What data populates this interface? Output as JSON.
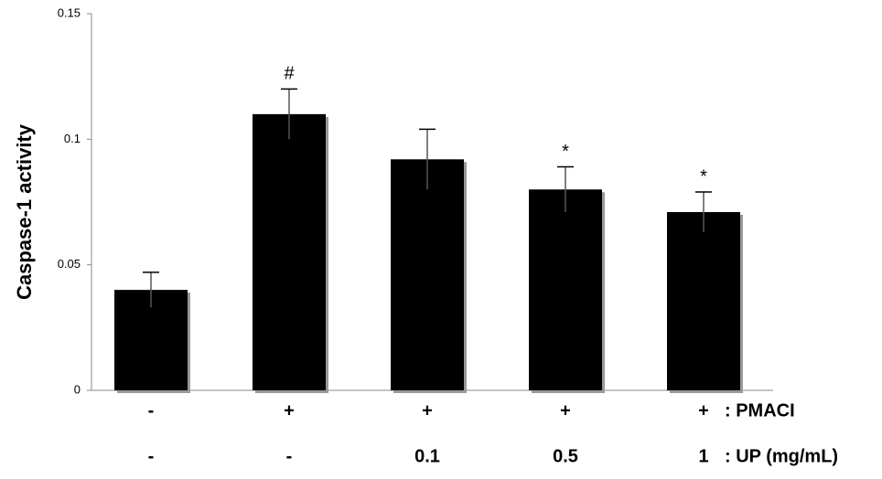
{
  "chart_data": {
    "type": "bar",
    "y_label": "Caspase-1 activity",
    "categories": [
      null,
      null,
      null,
      null,
      null
    ],
    "category_rows": [
      {
        "name": ": PMACI",
        "labels": [
          "-",
          "+",
          "+",
          "+",
          "+"
        ]
      },
      {
        "name": ": UP (mg/mL)",
        "labels": [
          "-",
          "-",
          "0.1",
          "0.5",
          "1"
        ]
      }
    ],
    "values": [
      0.04,
      0.11,
      0.092,
      0.08,
      0.071
    ],
    "errors": [
      0.007,
      0.01,
      0.012,
      0.009,
      0.008
    ],
    "bar_labels": [
      null,
      "#",
      null,
      "*",
      "*"
    ],
    "color": "#000000",
    "ylim": [
      0,
      0.15
    ],
    "yticks": [
      0,
      0.05,
      0.1,
      0.15
    ]
  }
}
